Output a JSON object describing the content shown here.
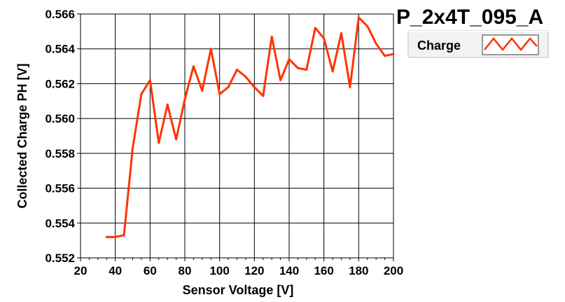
{
  "chart_data": {
    "type": "line",
    "title": "P_2x4T_095_A",
    "xlabel": "Sensor Voltage [V]",
    "ylabel": "Collected Charge PH [V]",
    "xlim": [
      20,
      200
    ],
    "ylim": [
      0.552,
      0.566
    ],
    "xticks": [
      20,
      40,
      60,
      80,
      100,
      120,
      140,
      160,
      180,
      200
    ],
    "yticks": [
      "0.552",
      "0.554",
      "0.556",
      "0.558",
      "0.560",
      "0.562",
      "0.564",
      "0.566"
    ],
    "grid": true,
    "legend_position": "top-right",
    "series": [
      {
        "name": "Charge",
        "color": "#ff3300",
        "x": [
          35,
          40,
          45,
          50,
          55,
          60,
          65,
          70,
          75,
          80,
          85,
          90,
          95,
          100,
          105,
          110,
          115,
          120,
          125,
          130,
          135,
          140,
          145,
          150,
          155,
          160,
          165,
          170,
          175,
          180,
          185,
          190,
          195,
          200
        ],
        "y": [
          0.5532,
          0.5532,
          0.5533,
          0.5583,
          0.5614,
          0.5622,
          0.5586,
          0.5608,
          0.5588,
          0.5611,
          0.563,
          0.5616,
          0.564,
          0.5614,
          0.5618,
          0.5628,
          0.5624,
          0.5618,
          0.5613,
          0.5647,
          0.5622,
          0.5634,
          0.5629,
          0.5628,
          0.5652,
          0.5646,
          0.5627,
          0.5649,
          0.5618,
          0.5658,
          0.5653,
          0.5643,
          0.5636,
          0.5637
        ]
      }
    ]
  }
}
